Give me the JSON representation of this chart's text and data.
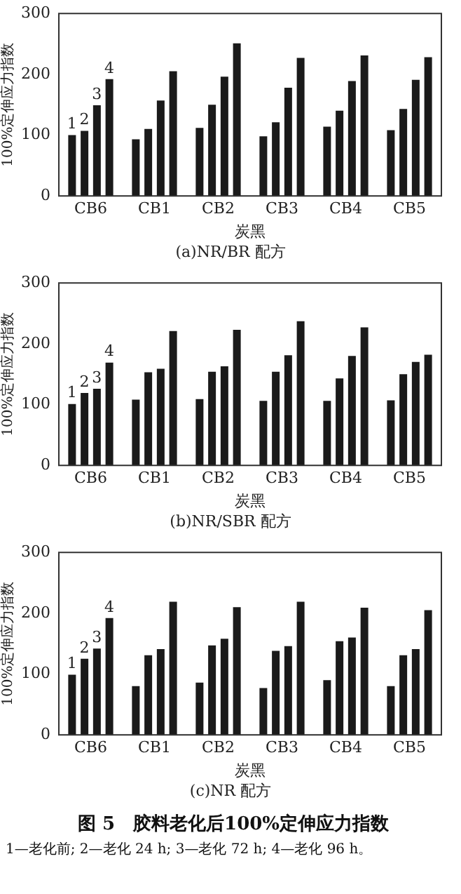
{
  "chart_data": [
    {
      "type": "bar",
      "subtitle": "(a)NR/BR 配方",
      "xlabel": "炭黑",
      "ylabel": "100%定伸应力指数",
      "categories": [
        "CB6",
        "CB1",
        "CB2",
        "CB3",
        "CB4",
        "CB5"
      ],
      "ylim": [
        0,
        300
      ],
      "yticks": [
        0,
        100,
        200,
        300
      ],
      "grid": false,
      "legend": false,
      "series": [
        {
          "name": "1",
          "color": "#1a1a1a",
          "values": [
            100,
            93,
            112,
            98,
            114,
            108
          ]
        },
        {
          "name": "2",
          "color": "#1a1a1a",
          "values": [
            107,
            110,
            150,
            121,
            140,
            143
          ]
        },
        {
          "name": "3",
          "color": "#1a1a1a",
          "values": [
            149,
            157,
            196,
            178,
            189,
            191
          ]
        },
        {
          "name": "4",
          "color": "#1a1a1a",
          "values": [
            192,
            205,
            251,
            227,
            231,
            228
          ]
        }
      ]
    },
    {
      "type": "bar",
      "subtitle": "(b)NR/SBR 配方",
      "xlabel": "炭黑",
      "ylabel": "100%定伸应力指数",
      "categories": [
        "CB6",
        "CB1",
        "CB2",
        "CB3",
        "CB4",
        "CB5"
      ],
      "ylim": [
        0,
        300
      ],
      "yticks": [
        0,
        100,
        200,
        300
      ],
      "grid": false,
      "legend": false,
      "series": [
        {
          "name": "1",
          "color": "#1a1a1a",
          "values": [
            101,
            108,
            109,
            106,
            106,
            107
          ]
        },
        {
          "name": "2",
          "color": "#1a1a1a",
          "values": [
            119,
            153,
            154,
            154,
            143,
            150
          ]
        },
        {
          "name": "3",
          "color": "#1a1a1a",
          "values": [
            126,
            159,
            163,
            181,
            180,
            170
          ]
        },
        {
          "name": "4",
          "color": "#1a1a1a",
          "values": [
            169,
            221,
            223,
            237,
            227,
            182
          ]
        }
      ]
    },
    {
      "type": "bar",
      "subtitle": "(c)NR 配方",
      "xlabel": "炭黑",
      "ylabel": "100%定伸应力指数",
      "categories": [
        "CB6",
        "CB1",
        "CB2",
        "CB3",
        "CB4",
        "CB5"
      ],
      "ylim": [
        0,
        300
      ],
      "yticks": [
        0,
        100,
        200,
        300
      ],
      "grid": false,
      "legend": false,
      "annotations": [
        "图 5　胶料老化后100%定伸应力指数",
        "1—老化前; 2—老化 24 h; 3—老化 72 h; 4—老化 96 h。"
      ],
      "series": [
        {
          "name": "1",
          "color": "#1a1a1a",
          "values": [
            99,
            80,
            86,
            77,
            90,
            80
          ]
        },
        {
          "name": "2",
          "color": "#1a1a1a",
          "values": [
            125,
            131,
            147,
            138,
            154,
            131
          ]
        },
        {
          "name": "3",
          "color": "#1a1a1a",
          "values": [
            142,
            141,
            158,
            146,
            160,
            141
          ]
        },
        {
          "name": "4",
          "color": "#1a1a1a",
          "values": [
            192,
            219,
            210,
            219,
            209,
            205
          ]
        }
      ]
    }
  ]
}
